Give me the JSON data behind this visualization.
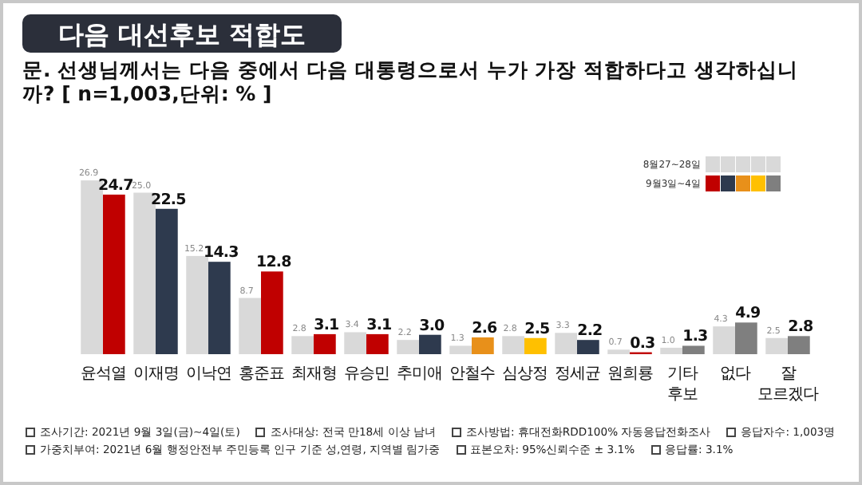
{
  "chart_data": {
    "type": "bar",
    "title": "다음 대선후보 적합도",
    "subtitle": "문. 선생님께서는 다음 중에서 다음 대통령으로서 누가 가장 적합하다고 생각하십니까? [ n=1,003,단위: % ]",
    "categories": [
      "윤석열",
      "이재명",
      "이낙연",
      "홍준표",
      "최재형",
      "유승민",
      "추미애",
      "안철수",
      "심상정",
      "정세균",
      "원희룡",
      "기타 후보",
      "없다",
      "잘 모르겠다"
    ],
    "series": [
      {
        "name": "8월27~28일",
        "color": "#d9d9d9",
        "values": [
          26.9,
          25.0,
          15.2,
          8.7,
          2.8,
          3.4,
          2.2,
          1.3,
          2.8,
          3.3,
          0.7,
          1.0,
          4.3,
          2.5
        ],
        "value_labels": [
          "26.9",
          "25.0",
          "15.2",
          "8.7",
          "2.8",
          "3.4",
          "2.2",
          "1.3",
          "2.8",
          "3.3",
          "0.7",
          "1.0",
          "4.3",
          "2.5"
        ]
      },
      {
        "name": "9월3일~4일",
        "colors": [
          "#c00000",
          "#2e3a4e",
          "#2e3a4e",
          "#c00000",
          "#c00000",
          "#c00000",
          "#2e3a4e",
          "#e8901a",
          "#ffc000",
          "#2e3a4e",
          "#c00000",
          "#7f7f7f",
          "#7f7f7f",
          "#7f7f7f"
        ],
        "values": [
          24.7,
          22.5,
          14.3,
          12.8,
          3.1,
          3.1,
          3.0,
          2.6,
          2.5,
          2.2,
          0.3,
          1.3,
          4.9,
          2.8
        ],
        "value_labels": [
          "24.7",
          "22.5",
          "14.3",
          "12.8",
          "3.1",
          "3.1",
          "3.0",
          "2.6",
          "2.5",
          "2.2",
          "0.3",
          "1.3",
          "4.9",
          "2.8"
        ]
      }
    ],
    "legend": "top right",
    "annotations": [
      "조사기간: 2021년 9월 3일(금)~4일(토)",
      "조사대상: 전국 만18세 이상 남녀",
      "조사방법: 휴대전화RDD100% 자동응답전화조사",
      "응답자수: 1,003명",
      "가중치부여: 2021년 6월 행정안전부 주민등록 인구 기준 성,연령, 지역별 림가중",
      "표본오차: 95%신뢰수준 ± 3.1%",
      "응답률: 3.1%"
    ]
  }
}
